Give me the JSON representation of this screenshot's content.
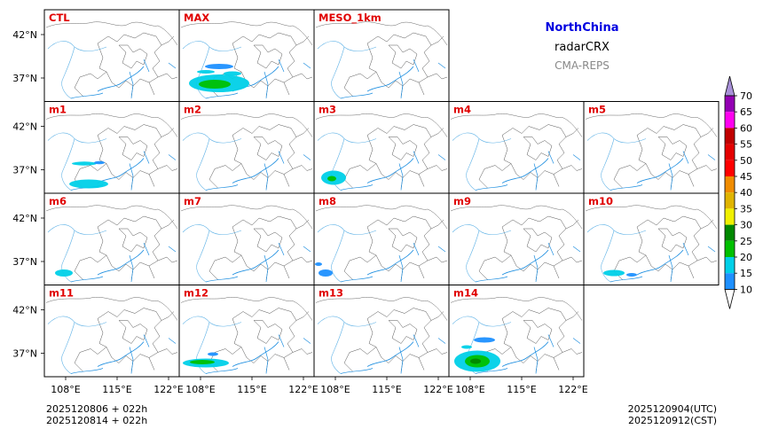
{
  "chart_data": {
    "type": "heatmap",
    "title": "NorthChina",
    "variable": "radarCRX",
    "system": "CMA-REPS",
    "panels": [
      "CTL",
      "MAX",
      "MESO_1km",
      "m1",
      "m2",
      "m3",
      "m4",
      "m5",
      "m6",
      "m7",
      "m8",
      "m9",
      "m10",
      "m11",
      "m12",
      "m13",
      "m14"
    ],
    "x_ticks": [
      "108°E",
      "115°E",
      "122°E"
    ],
    "y_ticks": [
      "42°N",
      "37°N"
    ],
    "colorbar": {
      "levels": [
        "10",
        "15",
        "20",
        "25",
        "30",
        "35",
        "40",
        "45",
        "50",
        "55",
        "60",
        "65",
        "70"
      ],
      "colors": [
        "#1e90ff",
        "#00d0e8",
        "#00c000",
        "#008800",
        "#f0f000",
        "#e0b400",
        "#f08c00",
        "#ff0000",
        "#e40000",
        "#c00000",
        "#ff00f0",
        "#9400b4",
        "#a890d8"
      ]
    },
    "footer": {
      "init_utc": "2025120806  +  022h",
      "init_cst": "2025120814  +  022h",
      "valid_utc": "2025120904(UTC)",
      "valid_cst": "2025120912(CST)"
    }
  }
}
